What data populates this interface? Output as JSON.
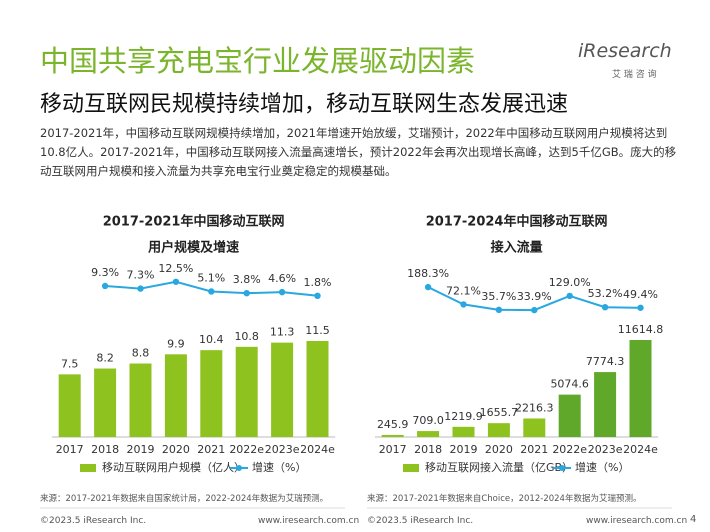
{
  "header": {
    "title": "中国共享充电宝行业发展驱动因素",
    "subtitle": "移动互联网民规模持续增加，移动互联网生态发展迅速",
    "logo": "iResearch",
    "logo_sub": "艾 瑞 咨 询"
  },
  "text": "2017-2021年，中国移动互联网规模持续增加，2021年增速开始放缓，艾瑞预计，2022年中国移动互联网用户规模将达到10.8亿人。2017-2021年，中国移动互联网接入流量高速增长，预计2022年会再次出现增长高峰，达到5千亿GB。庞大的移动互联网用户规模和接入流量为共享充电宝行业奠定稳定的规模基础。",
  "chart_data": [
    {
      "type": "bar",
      "title": [
        "2017-2021年中国移动互联网",
        "用户规模及增速"
      ],
      "categories": [
        "2017",
        "2018",
        "2019",
        "2020",
        "2021",
        "2022e",
        "2023e",
        "2024e"
      ],
      "ylim": [
        0,
        20
      ],
      "y2lim": [
        -106,
        21.5
      ],
      "series": [
        {
          "name": "移动互联网用户规模（亿人）",
          "type": "bar",
          "color": "#8dc21f",
          "colors": [
            "#8dc21f",
            "#8dc21f",
            "#8dc21f",
            "#8dc21f",
            "#8dc21f",
            "#8dc21f",
            "#8dc21f",
            "#8dc21f"
          ],
          "values": [
            7.5,
            8.2,
            8.8,
            9.9,
            10.4,
            10.8,
            11.3,
            11.5
          ]
        },
        {
          "name": "增速（%）",
          "type": "line",
          "axis": "y2",
          "color": "#29a8e0",
          "values": [
            null,
            9.3,
            7.3,
            12.5,
            5.1,
            3.8,
            4.6,
            1.8
          ],
          "value_labels": [
            null,
            "9.3%",
            "7.3%",
            "12.5%",
            "5.1%",
            "3.8%",
            "4.6%",
            "1.8%"
          ]
        }
      ],
      "source": "来源：2017-2021年数据来自国家统计局，2022-2024年数据为艾瑞预测。"
    },
    {
      "type": "bar",
      "title": [
        "2017-2024年中国移动互联网",
        "接入流量"
      ],
      "categories": [
        "2017",
        "2018",
        "2019",
        "2020",
        "2021",
        "2022e",
        "2023e",
        "2024e"
      ],
      "ylim": [
        0,
        20000
      ],
      "y2lim": [
        -818,
        303
      ],
      "series": [
        {
          "name": "移动互联网接入流量（亿GB）",
          "type": "bar",
          "color": "#8dc21f",
          "colors": [
            "#8dc21f",
            "#8dc21f",
            "#8dc21f",
            "#8dc21f",
            "#8dc21f",
            "#5fa82a",
            "#5fa82a",
            "#5fa82a"
          ],
          "values": [
            245.9,
            709.0,
            1219.9,
            1655.7,
            2216.3,
            5074.6,
            7774.3,
            11614.8
          ],
          "value_labels": [
            "245.9",
            "709.0",
            "1219.9",
            "1655.7",
            "2216.3",
            "5074.6",
            "7774.3",
            "11614.8"
          ]
        },
        {
          "name": "增速（%）",
          "type": "line",
          "axis": "y2",
          "color": "#29a8e0",
          "values": [
            null,
            188.3,
            72.1,
            35.7,
            33.9,
            129.0,
            53.2,
            49.4
          ],
          "value_labels": [
            null,
            "188.3%",
            "72.1%",
            "35.7%",
            "33.9%",
            "129.0%",
            "53.2%",
            "49.4%"
          ]
        }
      ],
      "source": "来源：2017-2021年数据来自Choice，2012-2024年数据为艾瑞预测。"
    }
  ],
  "footer": {
    "copyright": "©2023.5 iResearch Inc.",
    "url": "www.iresearch.com.cn",
    "page": "4"
  }
}
